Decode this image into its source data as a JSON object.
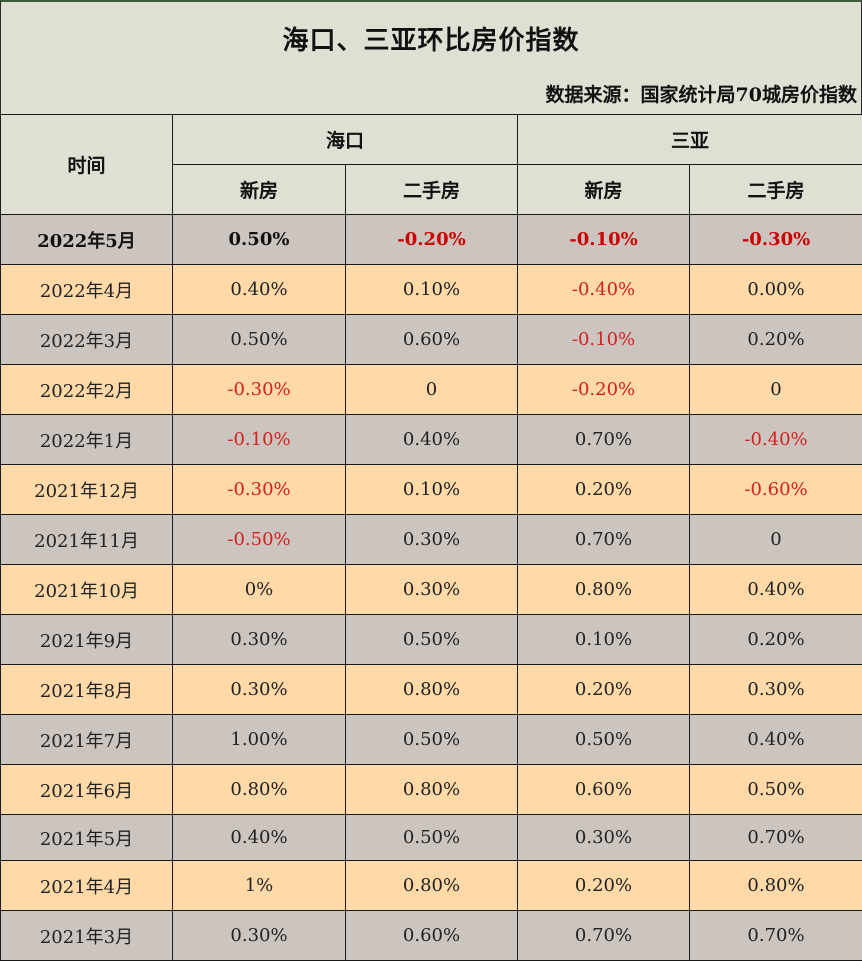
{
  "title": "海口、三亚环比房价指数",
  "source": "数据来源：国家统计局70城房价指数",
  "header": {
    "time": "时间",
    "city1": "海口",
    "city2": "三亚",
    "sub": [
      "新房",
      "二手房",
      "新房",
      "二手房"
    ]
  },
  "colors": {
    "header_bg": "#dfdfd4",
    "row_gray": "#ccc5bf",
    "row_peach": "#ffd9a8",
    "negative": "#d42020"
  },
  "rows": [
    {
      "date": "2022年5月",
      "values": [
        "0.50%",
        "-0.20%",
        "-0.10%",
        "-0.30%"
      ]
    },
    {
      "date": "2022年4月",
      "values": [
        "0.40%",
        "0.10%",
        "-0.40%",
        "0.00%"
      ]
    },
    {
      "date": "2022年3月",
      "values": [
        "0.50%",
        "0.60%",
        "-0.10%",
        "0.20%"
      ]
    },
    {
      "date": "2022年2月",
      "values": [
        "-0.30%",
        "0",
        "-0.20%",
        "0"
      ]
    },
    {
      "date": "2022年1月",
      "values": [
        "-0.10%",
        "0.40%",
        "0.70%",
        "-0.40%"
      ]
    },
    {
      "date": "2021年12月",
      "values": [
        "-0.30%",
        "0.10%",
        "0.20%",
        "-0.60%"
      ]
    },
    {
      "date": "2021年11月",
      "values": [
        "-0.50%",
        "0.30%",
        "0.70%",
        "0"
      ]
    },
    {
      "date": "2021年10月",
      "values": [
        "0%",
        "0.30%",
        "0.80%",
        "0.40%"
      ]
    },
    {
      "date": "2021年9月",
      "values": [
        "0.30%",
        "0.50%",
        "0.10%",
        "0.20%"
      ]
    },
    {
      "date": "2021年8月",
      "values": [
        "0.30%",
        "0.80%",
        "0.20%",
        "0.30%"
      ]
    },
    {
      "date": "2021年7月",
      "values": [
        "1.00%",
        "0.50%",
        "0.50%",
        "0.40%"
      ]
    },
    {
      "date": "2021年6月",
      "values": [
        "0.80%",
        "0.80%",
        "0.60%",
        "0.50%"
      ]
    },
    {
      "date": "2021年5月",
      "values": [
        "0.40%",
        "0.50%",
        "0.30%",
        "0.70%"
      ]
    },
    {
      "date": "2021年4月",
      "values": [
        "1%",
        "0.80%",
        "0.20%",
        "0.80%"
      ]
    },
    {
      "date": "2021年3月",
      "values": [
        "0.30%",
        "0.60%",
        "0.70%",
        "0.70%"
      ]
    }
  ]
}
